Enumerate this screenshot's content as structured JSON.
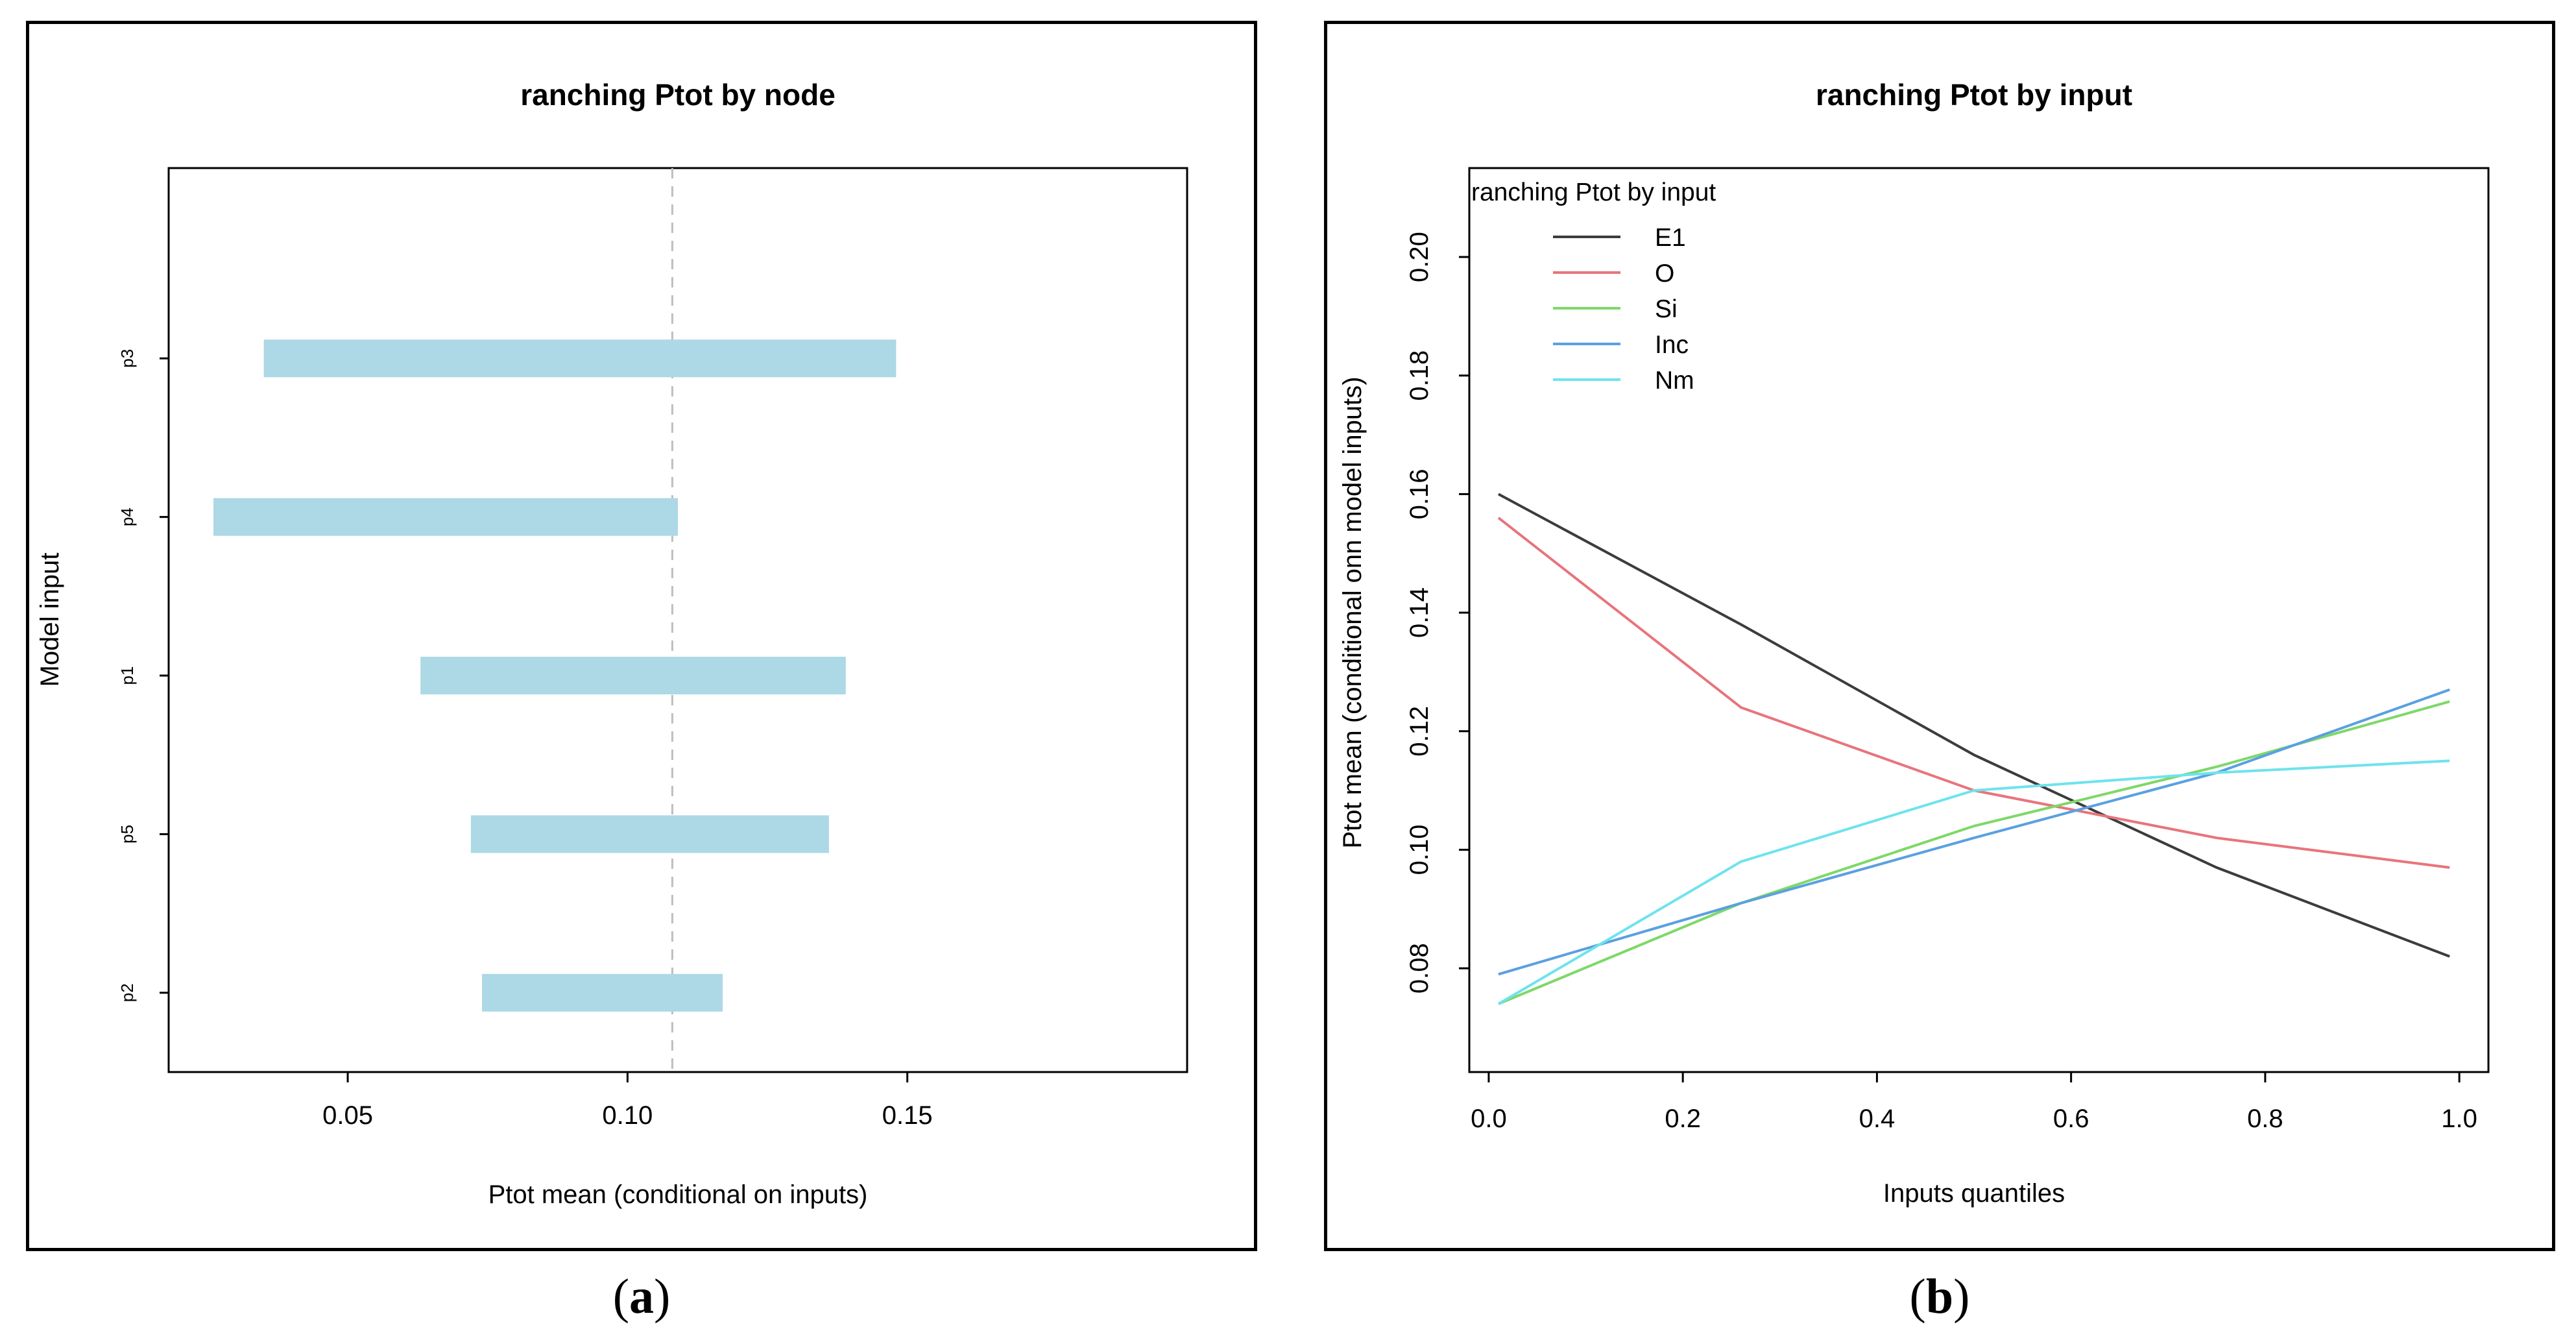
{
  "figure": {
    "caption_a_open": "(",
    "caption_a_letter": "a",
    "caption_a_close": ")",
    "caption_b_open": "(",
    "caption_b_letter": "b",
    "caption_b_close": ")"
  },
  "colors": {
    "bar": "#add8e6",
    "refline": "#bebebe",
    "E1": "#3c3c3c",
    "O": "#e8747c",
    "Si": "#7ed868",
    "Inc": "#5aa0e0",
    "Nm": "#6ee3ee"
  },
  "chart_data": [
    {
      "type": "bar",
      "orientation": "horizontal-range",
      "title": "ranching Ptot by node",
      "xlabel": "Ptot mean (conditional on inputs)",
      "ylabel": "Model input",
      "xlim": [
        0.018,
        0.2
      ],
      "xticks": [
        0.05,
        0.1,
        0.15
      ],
      "xtick_labels": [
        "0.05",
        "0.10",
        "0.15"
      ],
      "reference_line": 0.108,
      "categories": [
        "p3",
        "p4",
        "p1",
        "p5",
        "p2"
      ],
      "ranges": [
        {
          "node": "p3",
          "low": 0.035,
          "high": 0.148
        },
        {
          "node": "p4",
          "low": 0.026,
          "high": 0.109
        },
        {
          "node": "p1",
          "low": 0.063,
          "high": 0.139
        },
        {
          "node": "p5",
          "low": 0.072,
          "high": 0.136
        },
        {
          "node": "p2",
          "low": 0.074,
          "high": 0.117
        }
      ]
    },
    {
      "type": "line",
      "title": "ranching Ptot by input",
      "legend_title": "ranching Ptot by input",
      "legend_position": "top-left",
      "xlabel": "Inputs quantiles",
      "ylabel": "Ptot mean (conditional onn model inputs)",
      "xlim": [
        -0.02,
        1.03
      ],
      "ylim": [
        0.0625,
        0.215
      ],
      "xticks": [
        0.0,
        0.2,
        0.4,
        0.6,
        0.8,
        1.0
      ],
      "xtick_labels": [
        "0.0",
        "0.2",
        "0.4",
        "0.6",
        "0.8",
        "1.0"
      ],
      "yticks": [
        0.08,
        0.1,
        0.12,
        0.14,
        0.16,
        0.18,
        0.2
      ],
      "ytick_labels": [
        "0.08",
        "0.10",
        "0.12",
        "0.14",
        "0.16",
        "0.18",
        "0.20"
      ],
      "x": [
        0.01,
        0.26,
        0.5,
        0.75,
        0.99
      ],
      "series": [
        {
          "name": "E1",
          "color": "#3c3c3c",
          "values": [
            0.16,
            0.138,
            0.116,
            0.097,
            0.082
          ]
        },
        {
          "name": "O",
          "color": "#e8747c",
          "values": [
            0.156,
            0.124,
            0.11,
            0.102,
            0.097
          ]
        },
        {
          "name": "Si",
          "color": "#7ed868",
          "values": [
            0.074,
            0.091,
            0.104,
            0.114,
            0.125
          ]
        },
        {
          "name": "Inc",
          "color": "#5aa0e0",
          "values": [
            0.079,
            0.091,
            0.102,
            0.113,
            0.127
          ]
        },
        {
          "name": "Nm",
          "color": "#6ee3ee",
          "values": [
            0.074,
            0.098,
            0.11,
            0.113,
            0.115
          ]
        }
      ]
    }
  ]
}
